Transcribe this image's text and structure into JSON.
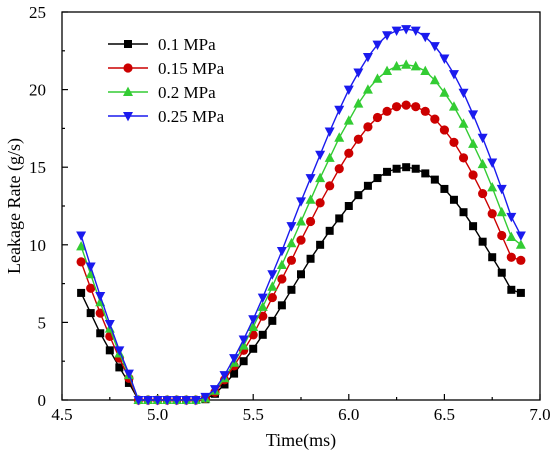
{
  "chart_data": {
    "type": "line",
    "xlabel": "Time(ms)",
    "ylabel": "Leakage Rate (g/s)",
    "xlim": [
      4.5,
      7.0
    ],
    "ylim": [
      0,
      25
    ],
    "xticks": [
      4.5,
      5.0,
      5.5,
      6.0,
      6.5,
      7.0
    ],
    "xtick_labels": [
      "4.5",
      "5.0",
      "5.5",
      "6.0",
      "6.5",
      "7.0"
    ],
    "yticks": [
      0,
      5,
      10,
      15,
      20,
      25
    ],
    "ytick_labels": [
      "0",
      "5",
      "10",
      "15",
      "20",
      "25"
    ],
    "grid": false,
    "legend": "top-left",
    "x": [
      4.6,
      4.65,
      4.7,
      4.75,
      4.8,
      4.85,
      4.9,
      4.95,
      5.0,
      5.05,
      5.1,
      5.15,
      5.2,
      5.25,
      5.3,
      5.35,
      5.4,
      5.45,
      5.5,
      5.55,
      5.6,
      5.65,
      5.7,
      5.75,
      5.8,
      5.85,
      5.9,
      5.95,
      6.0,
      6.05,
      6.1,
      6.15,
      6.2,
      6.25,
      6.3,
      6.35,
      6.4,
      6.45,
      6.5,
      6.55,
      6.6,
      6.65,
      6.7,
      6.75,
      6.8,
      6.85,
      6.9
    ],
    "series": [
      {
        "name": "0.1 MPa",
        "color": "#000000",
        "marker": "square",
        "values": [
          6.9,
          5.6,
          4.3,
          3.2,
          2.1,
          1.1,
          0.0,
          0.0,
          0.0,
          0.0,
          0.0,
          0.0,
          0.0,
          0.05,
          0.4,
          1.0,
          1.7,
          2.5,
          3.3,
          4.2,
          5.1,
          6.1,
          7.1,
          8.1,
          9.1,
          10.0,
          10.9,
          11.7,
          12.5,
          13.2,
          13.8,
          14.3,
          14.7,
          14.9,
          15.0,
          14.9,
          14.6,
          14.2,
          13.6,
          12.9,
          12.1,
          11.2,
          10.2,
          9.2,
          8.2,
          7.1,
          6.9
        ]
      },
      {
        "name": "0.15 MPa",
        "color": "#cc0000",
        "marker": "circle",
        "values": [
          8.9,
          7.2,
          5.6,
          4.1,
          2.7,
          1.4,
          0.0,
          0.0,
          0.0,
          0.0,
          0.0,
          0.0,
          0.0,
          0.1,
          0.5,
          1.3,
          2.2,
          3.2,
          4.2,
          5.4,
          6.6,
          7.8,
          9.0,
          10.3,
          11.5,
          12.7,
          13.8,
          14.9,
          15.9,
          16.8,
          17.6,
          18.2,
          18.6,
          18.9,
          19.0,
          18.9,
          18.6,
          18.1,
          17.4,
          16.6,
          15.6,
          14.5,
          13.3,
          12.0,
          10.6,
          9.2,
          9.0
        ]
      },
      {
        "name": "0.2 MPa",
        "color": "#33cc33",
        "marker": "triangle-up",
        "values": [
          9.9,
          8.1,
          6.3,
          4.6,
          3.0,
          1.6,
          0.0,
          0.0,
          0.0,
          0.0,
          0.0,
          0.0,
          0.0,
          0.1,
          0.6,
          1.4,
          2.4,
          3.5,
          4.7,
          6.0,
          7.3,
          8.7,
          10.1,
          11.5,
          12.9,
          14.3,
          15.6,
          16.9,
          18.0,
          19.1,
          20.0,
          20.7,
          21.2,
          21.5,
          21.6,
          21.5,
          21.2,
          20.6,
          19.8,
          18.9,
          17.8,
          16.5,
          15.2,
          13.7,
          12.1,
          10.5,
          10.0
        ]
      },
      {
        "name": "0.25 MPa",
        "color": "#1a1aee",
        "marker": "triangle-down",
        "values": [
          10.6,
          8.6,
          6.7,
          4.9,
          3.2,
          1.7,
          0.0,
          0.0,
          0.0,
          0.0,
          0.0,
          0.0,
          0.0,
          0.2,
          0.7,
          1.6,
          2.7,
          3.9,
          5.2,
          6.6,
          8.1,
          9.6,
          11.2,
          12.8,
          14.3,
          15.8,
          17.3,
          18.7,
          20.0,
          21.1,
          22.1,
          22.9,
          23.5,
          23.8,
          23.9,
          23.8,
          23.4,
          22.8,
          22.0,
          21.0,
          19.8,
          18.4,
          16.9,
          15.3,
          13.6,
          11.8,
          10.6
        ]
      }
    ]
  }
}
